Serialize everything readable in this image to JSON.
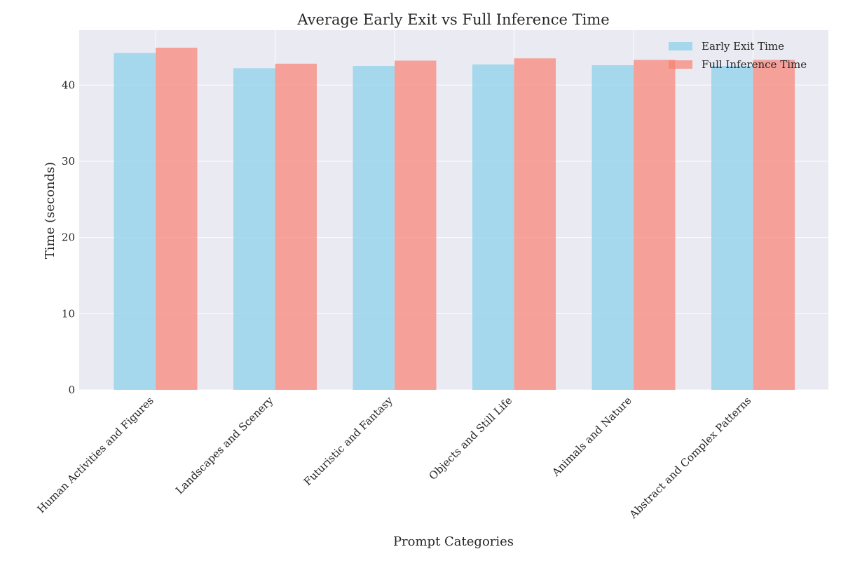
{
  "chart_data": {
    "type": "bar",
    "title": "Average Early Exit vs Full Inference Time",
    "xlabel": "Prompt Categories",
    "ylabel": "Time (seconds)",
    "ylim": [
      0,
      47.2
    ],
    "yticks": [
      0,
      10,
      20,
      30,
      40
    ],
    "grid": true,
    "legend_position": "top-right",
    "categories": [
      "Human Activities and Figures",
      "Landscapes and Scenery",
      "Futuristic and Fantasy",
      "Objects and Still Life",
      "Animals and Nature",
      "Abstract and Complex Patterns"
    ],
    "series": [
      {
        "name": "Early Exit Time",
        "color": "#87ceeb",
        "values": [
          44.2,
          42.2,
          42.5,
          42.7,
          42.6,
          42.5
        ]
      },
      {
        "name": "Full Inference Time",
        "color": "#fa8072",
        "values": [
          44.9,
          42.8,
          43.2,
          43.5,
          43.3,
          43.3
        ]
      }
    ]
  }
}
